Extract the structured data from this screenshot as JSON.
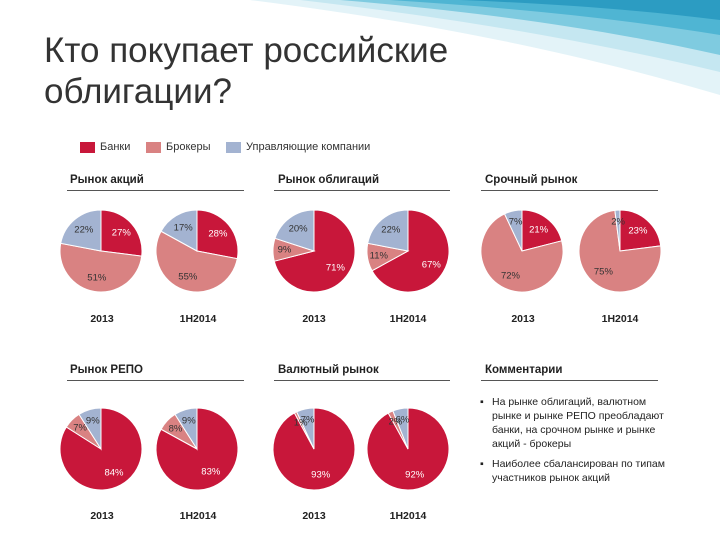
{
  "slide": {
    "title_line1": "Кто покупает российские",
    "title_line2": "облигации?"
  },
  "colors": {
    "banks": "#c8173a",
    "brokers": "#d98282",
    "managers": "#a3b3d1"
  },
  "legend": {
    "banks": "Банки",
    "brokers": "Брокеры",
    "managers": "Управляющие компании"
  },
  "sections": {
    "stocks": "Рынок акций",
    "bonds": "Рынок облигаций",
    "derivatives": "Срочный рынок",
    "repo": "Рынок РЕПО",
    "fx": "Валютный рынок",
    "comments": "Комментарии"
  },
  "comments": {
    "item1": "На рынке облигаций, валютном рынке и рынке РЕПО преобладают банки, на срочном рынке и рынке акций - брокеры",
    "item2": "Наиболее сбалансирован по типам участников рынок акций"
  },
  "chart_data": [
    {
      "type": "pie",
      "market": "Рынок акций",
      "period": "2013",
      "series": [
        "Банки",
        "Брокеры",
        "Управляющие компании"
      ],
      "values": [
        27,
        51,
        22
      ],
      "labels": [
        "27%",
        "51%",
        "22%"
      ]
    },
    {
      "type": "pie",
      "market": "Рынок акций",
      "period": "1H2014",
      "series": [
        "Банки",
        "Брокеры",
        "Управляющие компании"
      ],
      "values": [
        28,
        55,
        17
      ],
      "labels": [
        "28%",
        "55%",
        "17%"
      ]
    },
    {
      "type": "pie",
      "market": "Рынок облигаций",
      "period": "2013",
      "series": [
        "Банки",
        "Брокеры",
        "Управляющие компании"
      ],
      "values": [
        71,
        9,
        20
      ],
      "labels": [
        "71%",
        "9%",
        "20%"
      ]
    },
    {
      "type": "pie",
      "market": "Рынок облигаций",
      "period": "1H2014",
      "series": [
        "Банки",
        "Брокеры",
        "Управляющие компании"
      ],
      "values": [
        67,
        11,
        22
      ],
      "labels": [
        "67%",
        "11%",
        "22%"
      ]
    },
    {
      "type": "pie",
      "market": "Срочный рынок",
      "period": "2013",
      "series": [
        "Банки",
        "Брокеры",
        "Управляющие компании"
      ],
      "values": [
        21,
        72,
        7
      ],
      "labels": [
        "21%",
        "72%",
        "7%"
      ]
    },
    {
      "type": "pie",
      "market": "Срочный рынок",
      "period": "1H2014",
      "series": [
        "Банки",
        "Брокеры",
        "Управляющие компании"
      ],
      "values": [
        23,
        75,
        2
      ],
      "labels": [
        "23%",
        "75%",
        "2%"
      ]
    },
    {
      "type": "pie",
      "market": "Рынок РЕПО",
      "period": "2013",
      "series": [
        "Банки",
        "Брокеры",
        "Управляющие компании"
      ],
      "values": [
        84,
        7,
        9
      ],
      "labels": [
        "84%",
        "7%",
        "9%"
      ]
    },
    {
      "type": "pie",
      "market": "Рынок РЕПО",
      "period": "1H2014",
      "series": [
        "Банки",
        "Брокеры",
        "Управляющие компании"
      ],
      "values": [
        83,
        8,
        9
      ],
      "labels": [
        "83%",
        "8%",
        "9%"
      ]
    },
    {
      "type": "pie",
      "market": "Валютный рынок",
      "period": "2013",
      "series": [
        "Банки",
        "Брокеры",
        "Управляющие компании"
      ],
      "values": [
        93,
        1,
        7
      ],
      "labels": [
        "93%",
        "1%",
        "7%"
      ]
    },
    {
      "type": "pie",
      "market": "Валютный рынок",
      "period": "1H2014",
      "series": [
        "Банки",
        "Брокеры",
        "Управляющие компании"
      ],
      "values": [
        92,
        2,
        6
      ],
      "labels": [
        "92%",
        "2%",
        "6%"
      ]
    }
  ]
}
